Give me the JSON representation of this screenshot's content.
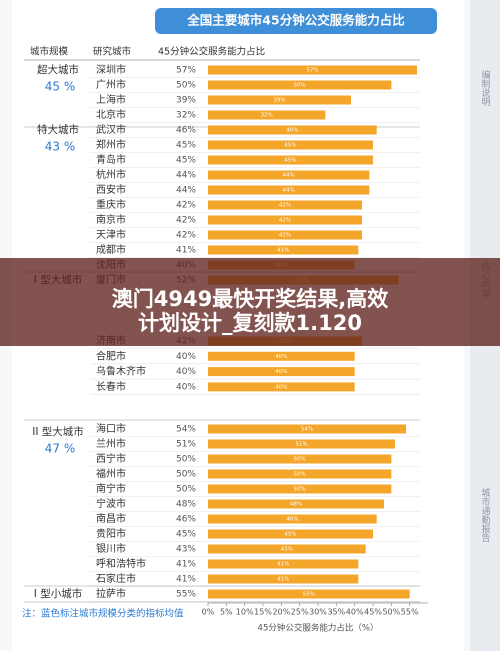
{
  "header": {
    "title": "全国主要城市45分钟公交服务能力占比"
  },
  "columns": {
    "scale": "城市规模",
    "city": "研究城市",
    "share": "45分钟公交服务能力占比"
  },
  "groups": [
    {
      "name": "超大城市",
      "mean": "45 %"
    },
    {
      "name": "特大城市",
      "mean": "43 %"
    },
    {
      "name": "I 型大城市"
    },
    {
      "name": "II 型大城市",
      "mean": "47 %"
    },
    {
      "name": "I 型小城市"
    }
  ],
  "chart_data": {
    "type": "bar",
    "orientation": "horizontal",
    "categories": [
      "深圳市",
      "广州市",
      "上海市",
      "北京市",
      "武汉市",
      "郑州市",
      "青岛市",
      "杭州市",
      "西安市",
      "重庆市",
      "南京市",
      "天津市",
      "成都市",
      "沈阳市",
      "厦门市",
      "济南市",
      "合肥市",
      "乌鲁木齐市",
      "长春市",
      "海口市",
      "兰州市",
      "西宁市",
      "福州市",
      "南宁市",
      "宁波市",
      "南昌市",
      "贵阳市",
      "银川市",
      "呼和浩特市",
      "石家庄市",
      "拉萨市"
    ],
    "values": [
      57,
      50,
      39,
      32,
      46,
      45,
      45,
      44,
      44,
      42,
      42,
      42,
      41,
      40,
      52,
      42,
      40,
      40,
      40,
      54,
      51,
      50,
      50,
      50,
      48,
      46,
      45,
      43,
      41,
      41,
      55
    ],
    "value_labels": [
      "57%",
      "50%",
      "39%",
      "32%",
      "46%",
      "45%",
      "45%",
      "44%",
      "44%",
      "42%",
      "42%",
      "42%",
      "41%",
      "40%",
      "52%",
      "42%",
      "40%",
      "40%",
      "40%",
      "54%",
      "51%",
      "50%",
      "50%",
      "50%",
      "48%",
      "46%",
      "45%",
      "43%",
      "41%",
      "41%",
      "55%"
    ],
    "color": "#f4a62a",
    "xlim": [
      0,
      60
    ],
    "xticks": [
      {
        "value": 0,
        "label": "0%"
      },
      {
        "value": 5,
        "label": "5%"
      },
      {
        "value": 10,
        "label": "10%"
      },
      {
        "value": 15,
        "label": "15%"
      },
      {
        "value": 20,
        "label": "20%"
      },
      {
        "value": 25,
        "label": "25%"
      },
      {
        "value": 30,
        "label": "30%"
      },
      {
        "value": 35,
        "label": "35%"
      },
      {
        "value": 40,
        "label": "40%"
      },
      {
        "value": 45,
        "label": "45%"
      },
      {
        "value": 50,
        "label": "50%"
      },
      {
        "value": 55,
        "label": "55%"
      }
    ],
    "x_label": "45分钟公交服务能力占比（%）"
  },
  "note": "注：蓝色标注城市规模分类的指标均值",
  "sidebar": [
    "编制说明",
    "核心内容",
    "城市通勤报告"
  ],
  "banner": [
    "澳门4949最快开奖结果,高效",
    "计划设计_复刻款1.120"
  ]
}
